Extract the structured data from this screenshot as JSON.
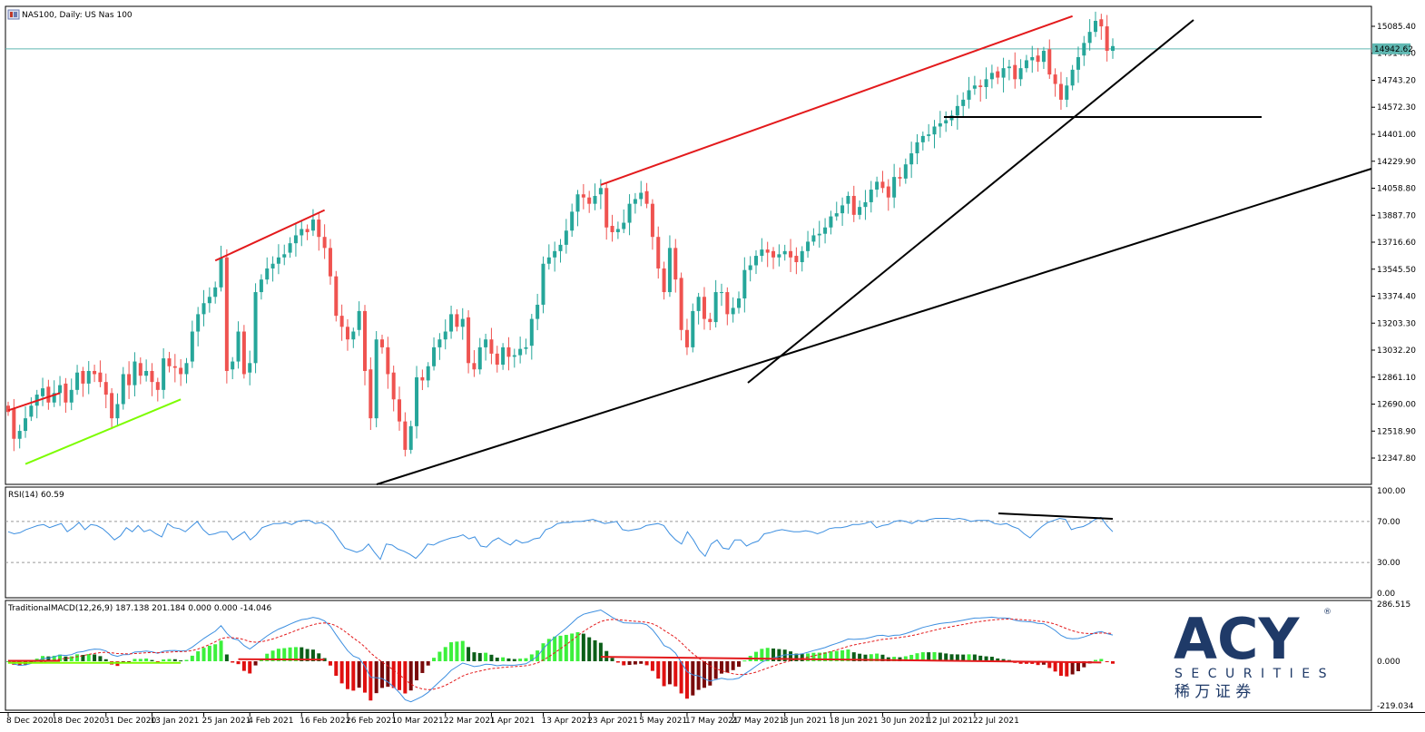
{
  "header": {
    "title": "NAS100, Daily:  US Nas 100",
    "rsi_label": "RSI(14) 60.59",
    "macd_label": "TraditionalMACD(12,26,9) 187.138 201.184 0.000 0.000 -14.046"
  },
  "logo": {
    "brand": "ACY",
    "sub": "SECURITIES",
    "cn": "稀 万 证 券",
    "reg": "®"
  },
  "colors": {
    "bull": "#26a69a",
    "bear": "#ef5350",
    "red_trend": "#e31a1c",
    "green_trend": "#7cfc00",
    "black_line": "#000000",
    "rsi_line": "#3d8fe0",
    "macd_line": "#3d8fe0",
    "signal_line": "#e31a1c",
    "price_line": "#5fb8b2",
    "logo_navy": "#1f3a68",
    "logo_gray": "#9aa3ad"
  },
  "chart_data": [
    {
      "type": "candlestick",
      "name": "NAS100 Daily",
      "dates": [
        "8 Dec 2020",
        "18 Dec 2020",
        "31 Dec 2020",
        "13 Jan 2021",
        "25 Jan 2021",
        "4 Feb 2021",
        "16 Feb 2021",
        "26 Feb 2021",
        "10 Mar 2021",
        "22 Mar 2021",
        "1 Apr 2021",
        "13 Apr 2021",
        "23 Apr 2021",
        "5 May 2021",
        "17 May 2021",
        "27 May 2021",
        "8 Jun 2021",
        "18 Jun 2021",
        "30 Jun 2021",
        "12 Jul 2021",
        "22 Jul 2021"
      ],
      "y_ticks": [
        "15085.40",
        "14914.50",
        "14743.20",
        "14572.30",
        "14401.00",
        "14229.90",
        "14058.80",
        "13887.70",
        "13716.60",
        "13545.50",
        "13374.40",
        "13203.30",
        "13032.20",
        "12861.10",
        "12690.00",
        "12518.90",
        "12347.80"
      ],
      "current_price": "14942.62",
      "closes": [
        12640,
        12470,
        12520,
        12600,
        12680,
        12750,
        12790,
        12700,
        12760,
        12810,
        12700,
        12780,
        12890,
        12820,
        12900,
        12880,
        12830,
        12750,
        12600,
        12690,
        12880,
        12810,
        12960,
        12870,
        12900,
        12830,
        12780,
        12980,
        12930,
        12920,
        12880,
        12950,
        13150,
        13260,
        13330,
        13370,
        13430,
        13620,
        12900,
        12960,
        13150,
        12880,
        12950,
        13400,
        13480,
        13550,
        13580,
        13620,
        13640,
        13710,
        13760,
        13800,
        13780,
        13860,
        13750,
        13680,
        13500,
        13250,
        13180,
        13100,
        13150,
        13280,
        12900,
        12600,
        13100,
        13050,
        12880,
        12720,
        12580,
        12400,
        12550,
        12860,
        12840,
        12930,
        13050,
        13100,
        13150,
        13260,
        13180,
        13230,
        12950,
        12910,
        13050,
        13100,
        13010,
        12940,
        13050,
        12990,
        13000,
        13040,
        13050,
        13230,
        13320,
        13580,
        13620,
        13660,
        13700,
        13790,
        13910,
        14020,
        14000,
        13960,
        14010,
        14060,
        13810,
        13780,
        13800,
        13840,
        13960,
        13990,
        14030,
        13960,
        13750,
        13550,
        13400,
        13680,
        13480,
        13160,
        13050,
        13280,
        13370,
        13230,
        13210,
        13400,
        13400,
        13260,
        13300,
        13360,
        13540,
        13570,
        13630,
        13670,
        13650,
        13620,
        13640,
        13660,
        13620,
        13590,
        13660,
        13720,
        13760,
        13770,
        13810,
        13880,
        13900,
        13950,
        14010,
        13890,
        13940,
        13970,
        14050,
        14100,
        14060,
        14000,
        14130,
        14120,
        14210,
        14280,
        14350,
        14390,
        14400,
        14450,
        14470,
        14490,
        14520,
        14580,
        14620,
        14680,
        14710,
        14700,
        14750,
        14790,
        14760,
        14820,
        14830,
        14750,
        14820,
        14870,
        14890,
        14860,
        14930,
        14780,
        14720,
        14620,
        14710,
        14810,
        14890,
        14980,
        15050,
        15120,
        15085,
        14930,
        14960
      ],
      "opens": [
        12680,
        12660,
        12470,
        12520,
        12610,
        12680,
        12740,
        12800,
        12700,
        12760,
        12820,
        12700,
        12780,
        12900,
        12820,
        12900,
        12890,
        12830,
        12760,
        12600,
        12690,
        12880,
        12810,
        12950,
        12870,
        12900,
        12830,
        12780,
        12980,
        12930,
        12920,
        12880,
        12960,
        13150,
        13260,
        13330,
        13370,
        13430,
        13620,
        12910,
        12960,
        13150,
        12890,
        12950,
        13400,
        13480,
        13550,
        13580,
        13620,
        13650,
        13710,
        13760,
        13800,
        13790,
        13860,
        13750,
        13680,
        13500,
        13250,
        13180,
        13100,
        13160,
        13280,
        12910,
        12600,
        13100,
        13050,
        12890,
        12720,
        12580,
        12400,
        12550,
        12860,
        12840,
        12930,
        13050,
        13100,
        13150,
        13260,
        13180,
        13240,
        12950,
        12910,
        13050,
        13100,
        13010,
        12940,
        13050,
        12990,
        13000,
        13040,
        13060,
        13230,
        13320,
        13580,
        13620,
        13660,
        13700,
        13790,
        13910,
        14020,
        14000,
        13960,
        14020,
        14060,
        13820,
        13780,
        13800,
        13840,
        13960,
        13990,
        14040,
        13960,
        13750,
        13550,
        13400,
        13680,
        13490,
        13160,
        13050,
        13280,
        13370,
        13230,
        13210,
        13400,
        13400,
        13260,
        13300,
        13360,
        13540,
        13570,
        13630,
        13670,
        13660,
        13620,
        13640,
        13660,
        13630,
        13590,
        13660,
        13720,
        13760,
        13770,
        13810,
        13880,
        13900,
        13960,
        14010,
        13890,
        13940,
        13970,
        14050,
        14100,
        14070,
        14000,
        14130,
        14120,
        14210,
        14280,
        14350,
        14390,
        14400,
        14450,
        14470,
        14490,
        14520,
        14580,
        14620,
        14690,
        14710,
        14700,
        14750,
        14800,
        14760,
        14820,
        14840,
        14750,
        14820,
        14870,
        14900,
        14860,
        14940,
        14780,
        14720,
        14620,
        14710,
        14810,
        14900,
        14980,
        15050,
        15130,
        15085,
        14930
      ]
    },
    {
      "type": "line",
      "name": "RSI(14) 60.59",
      "y_ticks": [
        "100.00",
        "70.00",
        "30.00",
        "0.00"
      ],
      "levels": [
        70,
        30
      ],
      "values": [
        60,
        58,
        59,
        62,
        64,
        66,
        67,
        64,
        66,
        68,
        60,
        64,
        69,
        62,
        67,
        66,
        63,
        58,
        52,
        56,
        64,
        60,
        66,
        60,
        62,
        58,
        55,
        68,
        64,
        63,
        60,
        65,
        70,
        62,
        57,
        58,
        60,
        60,
        52,
        56,
        60,
        52,
        57,
        64,
        66,
        68,
        68,
        69,
        67,
        70,
        71,
        71,
        68,
        69,
        66,
        61,
        52,
        44,
        42,
        40,
        42,
        48,
        40,
        33,
        48,
        47,
        43,
        41,
        38,
        34,
        40,
        48,
        47,
        50,
        52,
        54,
        55,
        57,
        53,
        55,
        46,
        45,
        51,
        54,
        50,
        47,
        52,
        49,
        50,
        53,
        54,
        62,
        64,
        68,
        69,
        69,
        70,
        70,
        71,
        72,
        70,
        68,
        69,
        70,
        62,
        61,
        62,
        63,
        66,
        67,
        68,
        66,
        58,
        52,
        48,
        60,
        52,
        42,
        36,
        48,
        52,
        44,
        43,
        52,
        52,
        46,
        49,
        51,
        58,
        59,
        61,
        62,
        61,
        60,
        60,
        61,
        60,
        58,
        60,
        63,
        64,
        64,
        65,
        67,
        67,
        68,
        70,
        64,
        66,
        67,
        70,
        71,
        70,
        68,
        71,
        70,
        72,
        73,
        73,
        73,
        72,
        73,
        72,
        70,
        71,
        71,
        71,
        68,
        67,
        68,
        65,
        63,
        58,
        54,
        60,
        65,
        69,
        71,
        73,
        72,
        62,
        64,
        65,
        68,
        72,
        74,
        66,
        60
      ]
    },
    {
      "type": "macd",
      "name": "TraditionalMACD(12,26,9)",
      "y_ticks": [
        "286.515",
        "0.000",
        "-219.034"
      ],
      "macd_value": 187.138,
      "signal_value": 201.184,
      "histogram_value": -14.046
    }
  ]
}
